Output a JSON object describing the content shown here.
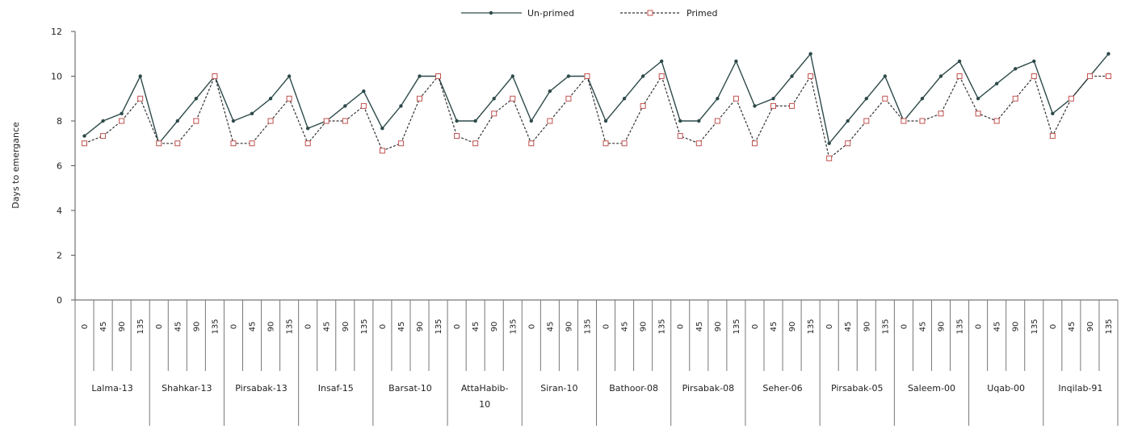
{
  "chart_data": {
    "type": "line",
    "ylabel": "Days to emergance",
    "ylim": [
      0,
      12
    ],
    "yticks": [
      0,
      2,
      4,
      6,
      8,
      10,
      12
    ],
    "legend_position": "top-center",
    "sub_categories": [
      "0",
      "45",
      "90",
      "135"
    ],
    "groups": [
      {
        "label": "Lalma-13",
        "lines": [
          "Lalma-13"
        ]
      },
      {
        "label": "Shahkar-13",
        "lines": [
          "Shahkar-13"
        ]
      },
      {
        "label": "Pirsabak-13",
        "lines": [
          "Pirsabak-13"
        ]
      },
      {
        "label": "Insaf-15",
        "lines": [
          "Insaf-15"
        ]
      },
      {
        "label": "Barsat-10",
        "lines": [
          "Barsat-10"
        ]
      },
      {
        "label": "AttaHabib-10",
        "lines": [
          "AttaHabib-",
          "10"
        ]
      },
      {
        "label": "Siran-10",
        "lines": [
          "Siran-10"
        ]
      },
      {
        "label": "Bathoor-08",
        "lines": [
          "Bathoor-08"
        ]
      },
      {
        "label": "Pirsabak-08",
        "lines": [
          "Pirsabak-08"
        ]
      },
      {
        "label": "Seher-06",
        "lines": [
          "Seher-06"
        ]
      },
      {
        "label": "Pirsabak-05",
        "lines": [
          "Pirsabak-05"
        ]
      },
      {
        "label": "Saleem-00",
        "lines": [
          "Saleem-00"
        ]
      },
      {
        "label": "Uqab-00",
        "lines": [
          "Uqab-00"
        ]
      },
      {
        "label": "Inqilab-91",
        "lines": [
          "Inqilab-91"
        ]
      }
    ],
    "series": [
      {
        "name": "Un-primed",
        "color": "#2e4a4a",
        "values": [
          7.33,
          8,
          8.33,
          10,
          7,
          8,
          9,
          10,
          8,
          8.33,
          9,
          10,
          7.67,
          8,
          8.67,
          9.33,
          7.67,
          8.67,
          10,
          10,
          8,
          8,
          9,
          10,
          8,
          9.33,
          10,
          10,
          8,
          9,
          10,
          10.67,
          8,
          8,
          9,
          10.67,
          8.67,
          9,
          10,
          11,
          7,
          8,
          9,
          10,
          8,
          9,
          10,
          10.67,
          9,
          9.67,
          10.33,
          10.67,
          8.33,
          9,
          10,
          11
        ]
      },
      {
        "name": "Primed",
        "color": "#333333",
        "marker_color": "#c0504d",
        "values": [
          7,
          7.33,
          8,
          9,
          7,
          7,
          8,
          10,
          7,
          7,
          8,
          9,
          7,
          8,
          8,
          8.67,
          6.67,
          7,
          9,
          10,
          7.33,
          7,
          8.33,
          9,
          7,
          8,
          9,
          10,
          7,
          7,
          8.67,
          10,
          7.33,
          7,
          8,
          9,
          7,
          8.67,
          8.67,
          10,
          6.33,
          7,
          8,
          9,
          8,
          8,
          8.33,
          10,
          8.33,
          8,
          9,
          10,
          7.33,
          9,
          10,
          10
        ]
      }
    ]
  }
}
